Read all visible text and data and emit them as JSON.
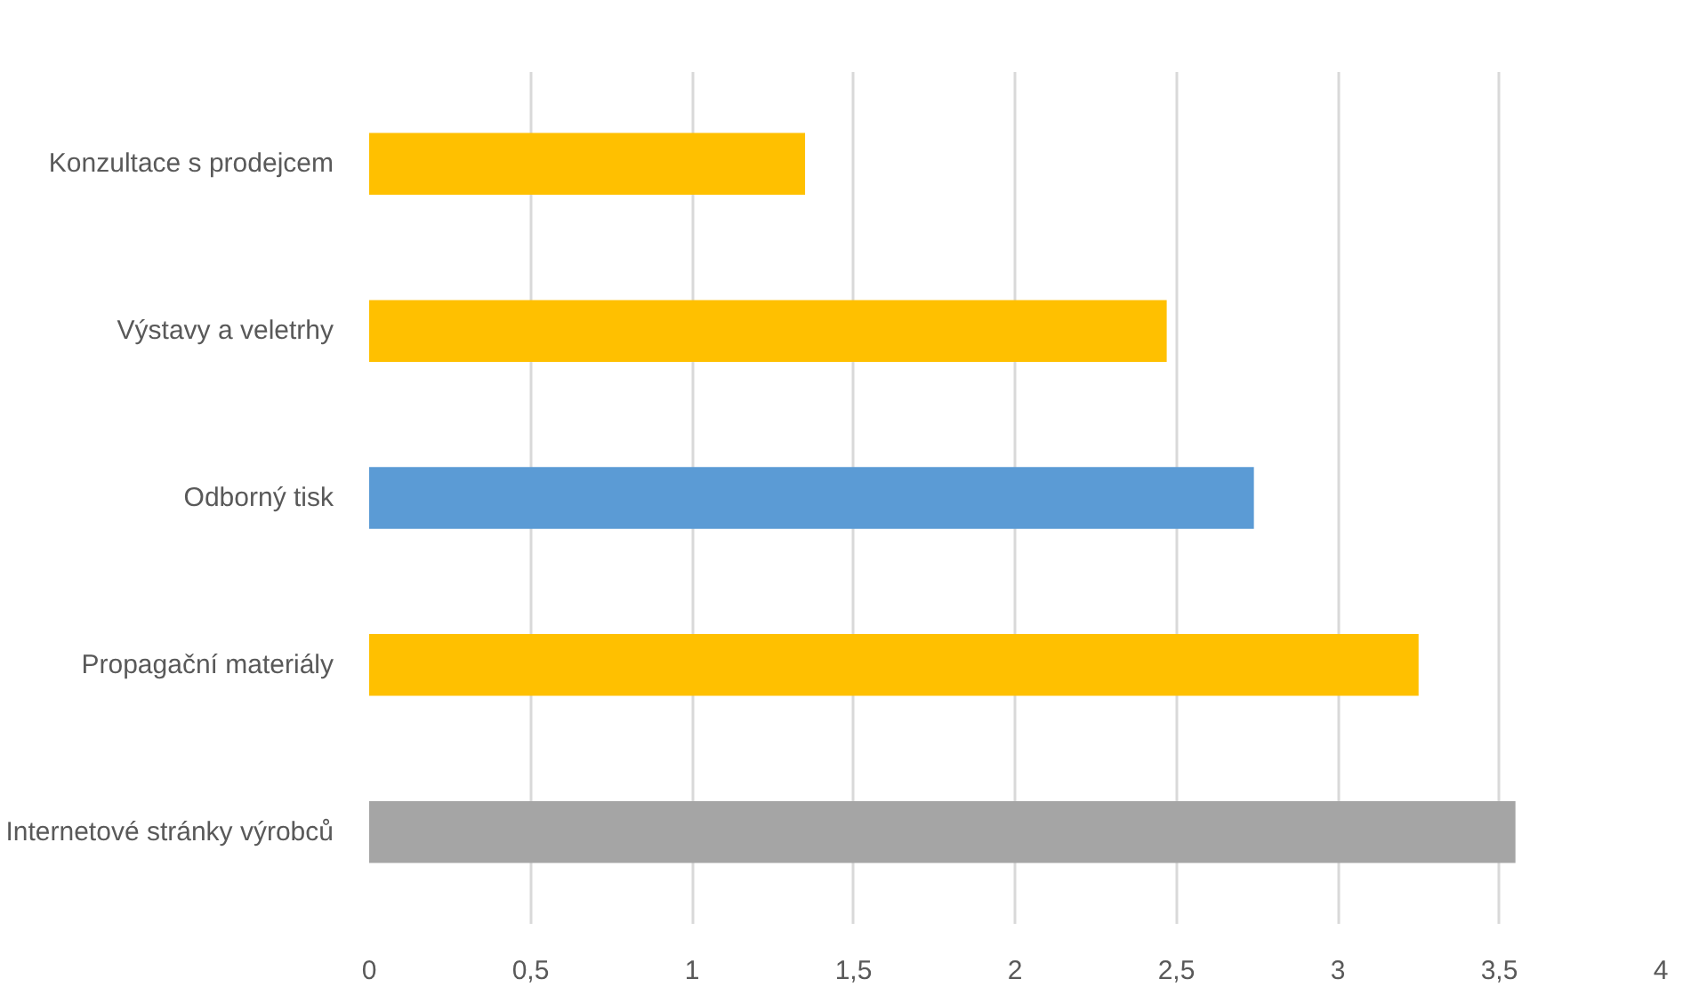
{
  "chart_data": {
    "type": "bar",
    "orientation": "horizontal",
    "categories": [
      "Konzultace s prodejcem",
      "Výstavy a veletrhy",
      "Odborný tisk",
      "Propagační materiály",
      "Internetové stránky výrobců"
    ],
    "values": [
      1.35,
      2.47,
      2.74,
      3.25,
      3.55
    ],
    "colors": [
      "#ffc000",
      "#ffc000",
      "#5b9bd5",
      "#ffc000",
      "#a5a5a5"
    ],
    "xlim": [
      0,
      4
    ],
    "xticks": [
      0,
      {
        "value": 0.5,
        "label": "0,5"
      },
      1,
      {
        "value": 1.5,
        "label": "1,5"
      },
      2,
      {
        "value": 2.5,
        "label": "2,5"
      },
      3,
      {
        "value": 3.5,
        "label": "3,5"
      },
      4
    ],
    "grid": "x"
  }
}
